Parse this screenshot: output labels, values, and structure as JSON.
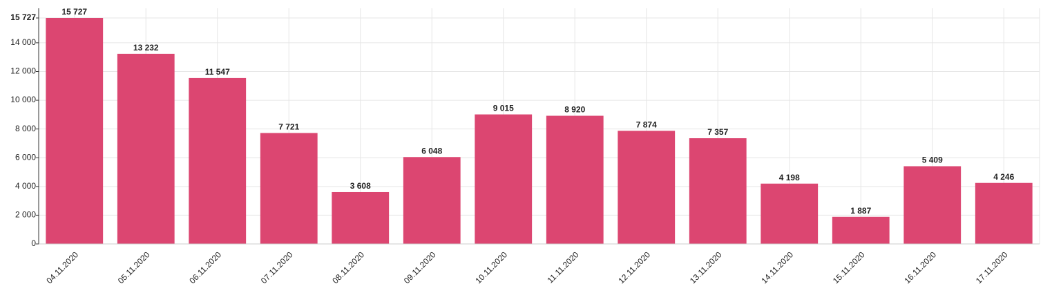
{
  "chart_data": {
    "type": "bar",
    "categories": [
      "04.11.2020",
      "05.11.2020",
      "06.11.2020",
      "07.11.2020",
      "08.11.2020",
      "09.11.2020",
      "10.11.2020",
      "11.11.2020",
      "12.11.2020",
      "13.11.2020",
      "14.11.2020",
      "15.11.2020",
      "16.11.2020",
      "17.11.2020"
    ],
    "values": [
      15727,
      13232,
      11547,
      7721,
      3608,
      6048,
      9015,
      8920,
      7874,
      7357,
      4198,
      1887,
      5409,
      4246
    ],
    "value_labels": [
      "15 727",
      "13 232",
      "11 547",
      "7 721",
      "3 608",
      "6 048",
      "9 015",
      "8 920",
      "7 874",
      "7 357",
      "4 198",
      "1 887",
      "5 409",
      "4 246"
    ],
    "color": "#dc4671",
    "ylim": [
      0,
      15727
    ],
    "yticks": [
      0,
      {
        "value": 2000,
        "label": "2 000"
      },
      {
        "value": 4000,
        "label": "4 000"
      },
      {
        "value": 6000,
        "label": "6 000"
      },
      {
        "value": 8000,
        "label": "8 000"
      },
      {
        "value": 10000,
        "label": "10 000"
      },
      {
        "value": 12000,
        "label": "12 000"
      },
      {
        "value": 14000,
        "label": "14 000"
      },
      {
        "value": 15727,
        "label": "15 727"
      }
    ],
    "grid": true
  }
}
